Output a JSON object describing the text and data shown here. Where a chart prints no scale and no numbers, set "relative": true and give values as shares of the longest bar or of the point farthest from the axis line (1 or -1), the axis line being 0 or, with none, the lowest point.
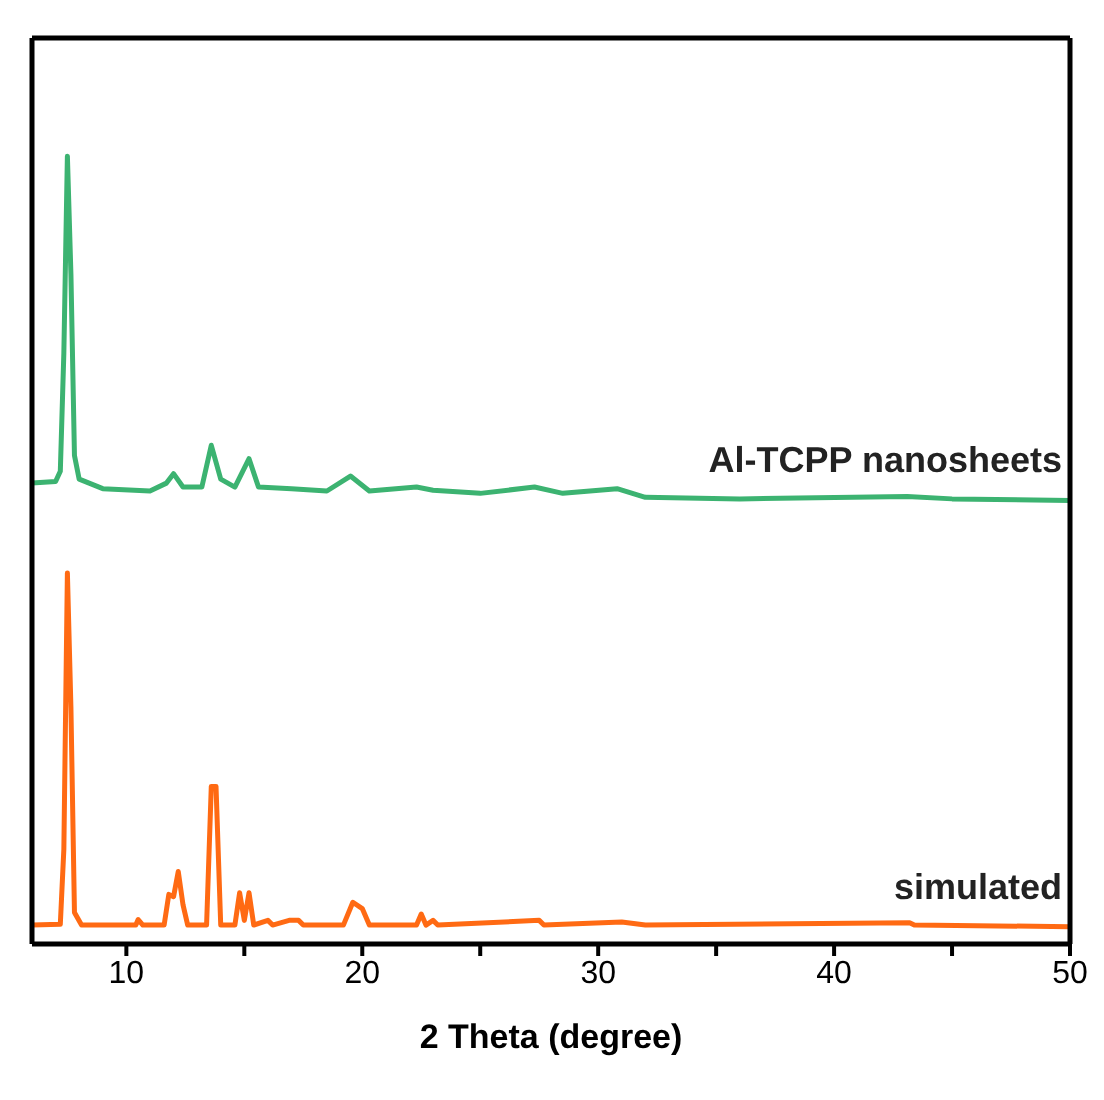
{
  "chart_data": {
    "type": "line",
    "xlabel": "2 Theta (degree)",
    "relative": true,
    "xlim": [
      6,
      50
    ],
    "xticks": [
      {
        "value": 10,
        "label": "10"
      },
      {
        "value": 15,
        "label": null
      },
      {
        "value": 20,
        "label": "20"
      },
      {
        "value": 25,
        "label": null
      },
      {
        "value": 30,
        "label": "30"
      },
      {
        "value": 35,
        "label": null
      },
      {
        "value": 40,
        "label": "40"
      },
      {
        "value": 45,
        "label": null
      },
      {
        "value": 50,
        "label": "50"
      }
    ],
    "legend": false,
    "marker": "none",
    "line_style": "solid",
    "series": [
      {
        "name": "Al-TCPP nanosheets",
        "color": "#3cb371",
        "x": [
          6.0,
          7.0,
          7.2,
          7.35,
          7.5,
          7.65,
          7.8,
          8.0,
          9,
          11,
          11.7,
          12.0,
          12.4,
          13.2,
          13.6,
          14.0,
          14.6,
          15.2,
          15.6,
          17,
          18.5,
          19.5,
          20.3,
          22.3,
          23,
          25,
          27.3,
          28.5,
          30.8,
          32,
          36,
          43.1,
          45,
          50
        ],
        "values": [
          0.585,
          0.587,
          0.6,
          0.75,
          1.0,
          0.85,
          0.62,
          0.59,
          0.578,
          0.575,
          0.585,
          0.597,
          0.58,
          0.58,
          0.633,
          0.59,
          0.58,
          0.616,
          0.58,
          0.578,
          0.575,
          0.594,
          0.575,
          0.58,
          0.576,
          0.572,
          0.58,
          0.572,
          0.578,
          0.567,
          0.565,
          0.568,
          0.565,
          0.563
        ]
      },
      {
        "name": "simulated",
        "color": "#ff6a13",
        "x": [
          6,
          7.2,
          7.35,
          7.5,
          7.65,
          7.8,
          8.1,
          10.4,
          10.5,
          10.7,
          11.6,
          11.8,
          12.0,
          12.2,
          12.4,
          12.6,
          13.4,
          13.6,
          13.8,
          14.0,
          14.6,
          14.8,
          15.0,
          15.2,
          15.4,
          16.0,
          16.2,
          16.9,
          17.3,
          17.5,
          19.2,
          19.6,
          20.0,
          20.3,
          22.3,
          22.5,
          22.7,
          23,
          23.2,
          27.5,
          27.7,
          31,
          32,
          43.2,
          43.4,
          50
        ],
        "values": [
          0.024,
          0.025,
          0.12,
          0.471,
          0.3,
          0.04,
          0.024,
          0.024,
          0.031,
          0.024,
          0.024,
          0.063,
          0.06,
          0.092,
          0.05,
          0.024,
          0.024,
          0.2,
          0.2,
          0.024,
          0.024,
          0.065,
          0.03,
          0.065,
          0.024,
          0.03,
          0.024,
          0.03,
          0.03,
          0.024,
          0.024,
          0.053,
          0.045,
          0.024,
          0.024,
          0.038,
          0.024,
          0.03,
          0.024,
          0.03,
          0.024,
          0.028,
          0.024,
          0.027,
          0.024,
          0.022
        ]
      }
    ]
  }
}
